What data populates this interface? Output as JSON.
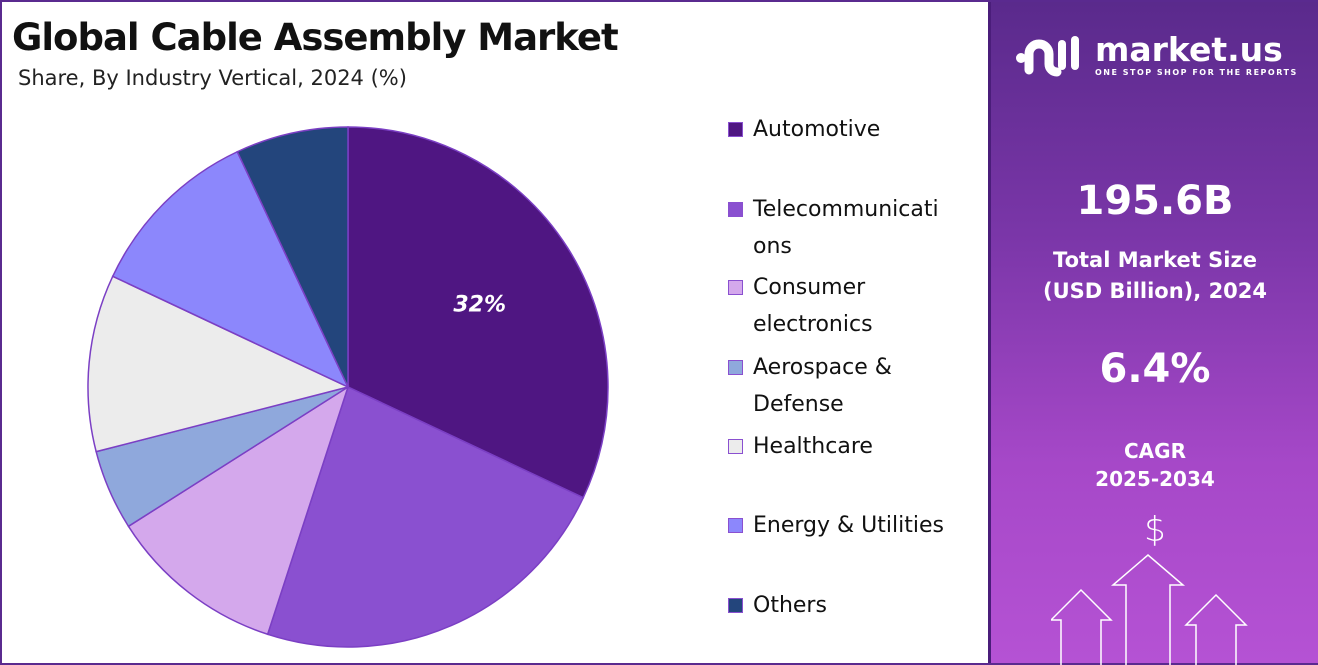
{
  "header": {
    "title": "Global Cable Assembly Market",
    "subtitle": "Share, By Industry Vertical, 2024 (%)"
  },
  "chart_data": {
    "type": "pie",
    "title": "Global Cable Assembly Market",
    "subtitle": "Share, By Industry Vertical, 2024 (%)",
    "categories": [
      "Automotive",
      "Telecommunications",
      "Consumer electronics",
      "Aerospace & Defense",
      "Healthcare",
      "Energy & Utilities",
      "Others"
    ],
    "legend_labels": [
      [
        "Automotive"
      ],
      [
        "Telecommunicati",
        "ons"
      ],
      [
        "Consumer",
        "electronics"
      ],
      [
        "Aerospace &",
        "Defense"
      ],
      [
        "Healthcare"
      ],
      [
        "Energy & Utilities"
      ],
      [
        "Others"
      ]
    ],
    "values": [
      32,
      23,
      11,
      5,
      11,
      11,
      7
    ],
    "colors": [
      "#4f1682",
      "#8a50d0",
      "#d4a8ec",
      "#8fa8dc",
      "#ececec",
      "#8c87fc",
      "#23457c"
    ],
    "data_labels": [
      "32%"
    ],
    "legend_position": "right"
  },
  "panel": {
    "brand": "market.us",
    "tagline": "ONE STOP SHOP FOR THE REPORTS",
    "market_size": "195.6B",
    "market_size_label_1": "Total Market Size",
    "market_size_label_2": "(USD Billion), 2024",
    "cagr": "6.4%",
    "cagr_label_1": "CAGR",
    "cagr_label_2": "2025-2034",
    "currency_symbol": "$"
  }
}
